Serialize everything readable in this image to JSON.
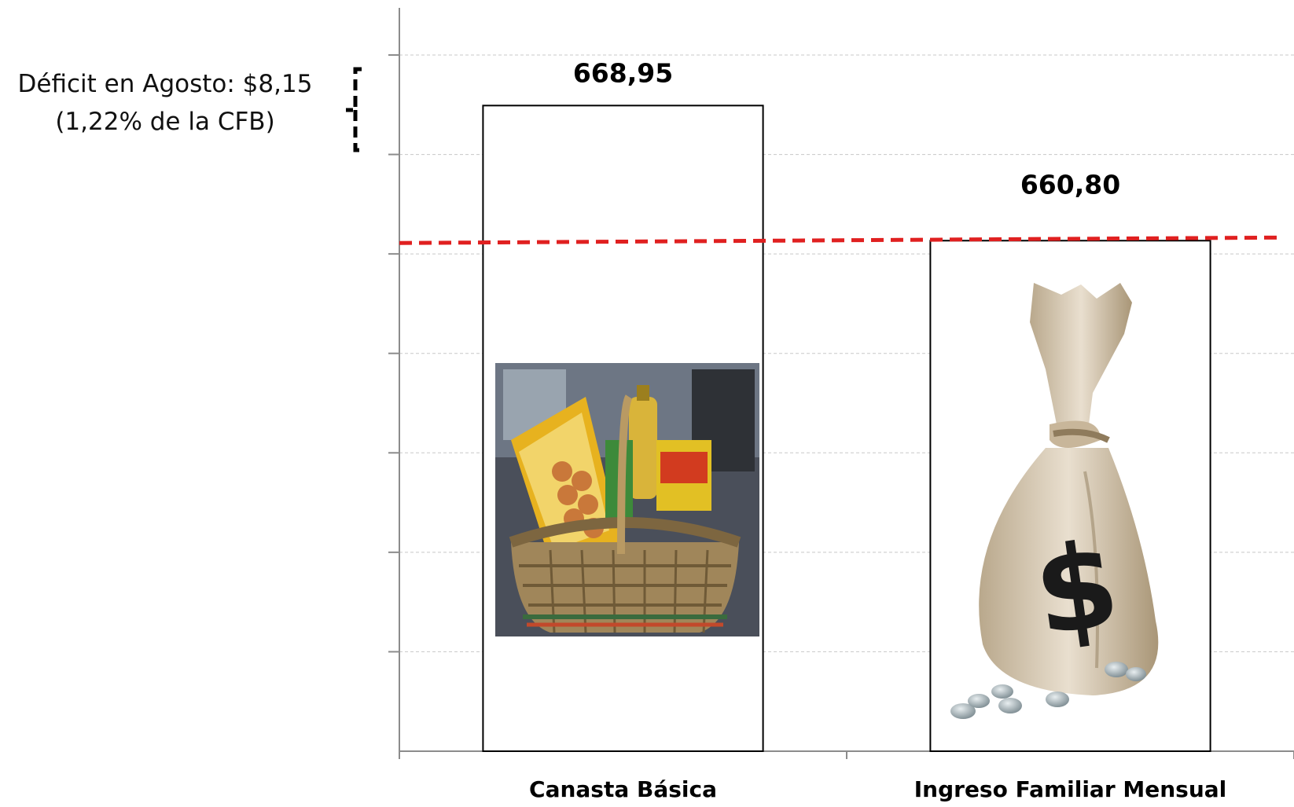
{
  "annotation": {
    "line1": "Déficit en Agosto: $8,15",
    "line2": "(1,22% de la CFB)"
  },
  "chart_data": {
    "type": "bar",
    "categories": [
      "Canasta Básica",
      "Ingreso Familiar Mensual"
    ],
    "values": [
      668.95,
      660.8
    ],
    "data_labels": [
      "668,95",
      "660,80"
    ],
    "ylim": [
      630,
      672
    ],
    "grid": true,
    "reference_line": {
      "value": 660.8,
      "color": "#e02020",
      "style": "dashed"
    },
    "images": [
      "food-basket",
      "money-bag"
    ]
  }
}
